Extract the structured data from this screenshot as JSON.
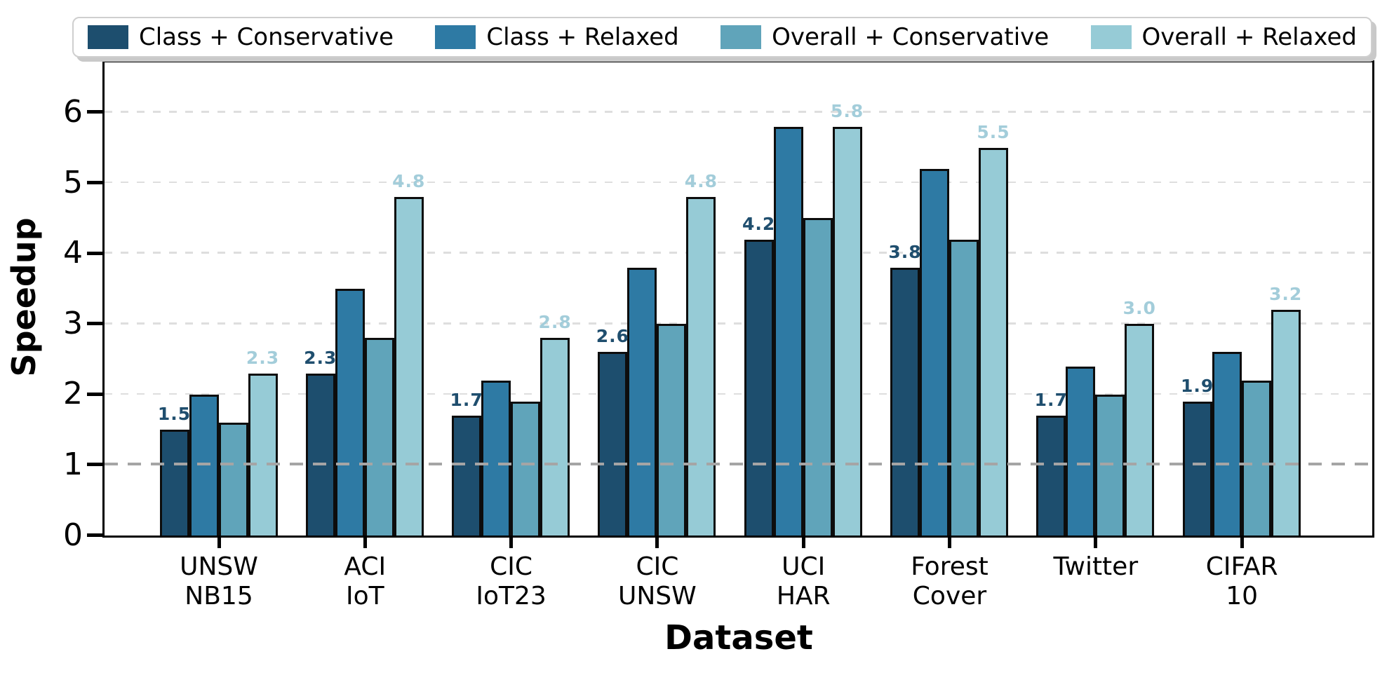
{
  "chart_data": {
    "type": "bar",
    "title": "",
    "xlabel": "Dataset",
    "ylabel": "Speedup",
    "ylim": [
      0,
      6.7
    ],
    "yticks": [
      0,
      1,
      2,
      3,
      4,
      5,
      6
    ],
    "legend_position": "top",
    "grid": {
      "dashed_horizontal_at": [
        2,
        3,
        4,
        5,
        6
      ],
      "color": "#dedede"
    },
    "reference_line": {
      "y": 1,
      "style": "dashed",
      "color": "#a5a5a5"
    },
    "categories": [
      "UNSW NB15",
      "ACI IoT",
      "CIC IoT23",
      "CIC UNSW",
      "UCI HAR",
      "Forest Cover",
      "Twitter",
      "CIFAR 10"
    ],
    "category_lines": [
      [
        "UNSW",
        "NB15"
      ],
      [
        "ACI",
        "IoT"
      ],
      [
        "CIC",
        "IoT23"
      ],
      [
        "CIC",
        "UNSW"
      ],
      [
        "UCI",
        "HAR"
      ],
      [
        "Forest",
        "Cover"
      ],
      [
        "Twitter"
      ],
      [
        "CIFAR",
        "10"
      ]
    ],
    "series": [
      {
        "name": "Class + Conservative",
        "color": "#1d4e6e",
        "values": [
          1.5,
          2.3,
          1.7,
          2.6,
          4.2,
          3.8,
          1.7,
          1.9
        ]
      },
      {
        "name": "Class + Relaxed",
        "color": "#2e7aa4",
        "values": [
          2.0,
          3.5,
          2.2,
          3.8,
          5.8,
          5.2,
          2.4,
          2.6
        ]
      },
      {
        "name": "Overall + Conservative",
        "color": "#60a4ba",
        "values": [
          1.6,
          2.8,
          1.9,
          3.0,
          4.5,
          4.2,
          2.0,
          2.2
        ]
      },
      {
        "name": "Overall + Relaxed",
        "color": "#96cbd6",
        "values": [
          2.3,
          4.8,
          2.8,
          4.8,
          5.8,
          5.5,
          3.0,
          3.2
        ]
      }
    ],
    "bar_value_labels": {
      "labeled_series_indices": [
        0,
        3
      ],
      "first_series_label_color": "#1f4e6e",
      "last_series_label_color": "#a3cdda",
      "first_series_labels": [
        "1.5",
        "2.3",
        "1.7",
        "2.6",
        "4.2",
        "3.8",
        "1.7",
        "1.9"
      ],
      "last_series_labels": [
        "2.3",
        "4.8",
        "2.8",
        "4.8",
        "5.8",
        "5.5",
        "3.0",
        "3.2"
      ]
    },
    "bar_edge_color": "#0d0d0d",
    "axis_spine_color": "#000000"
  }
}
